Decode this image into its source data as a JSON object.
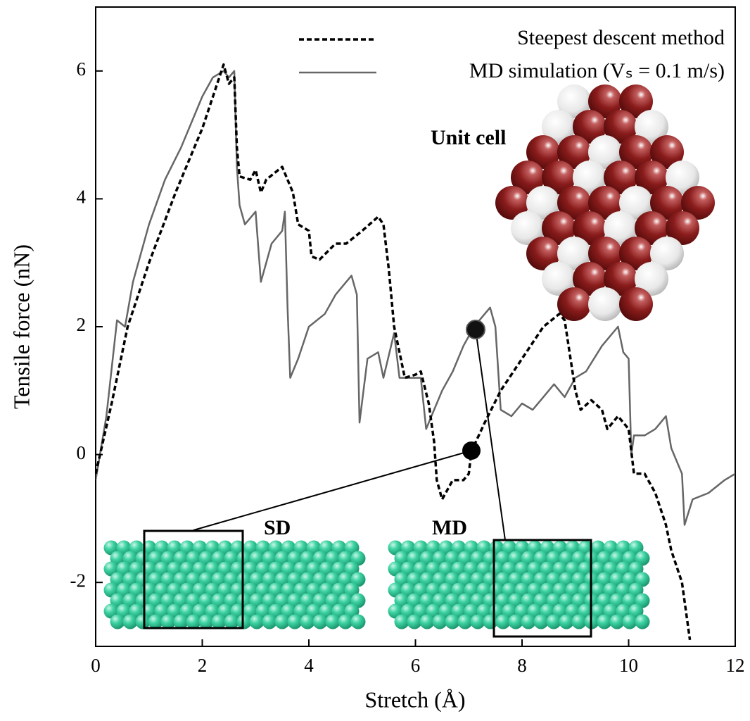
{
  "chart_data": {
    "type": "line",
    "xlabel": "Stretch (Å)",
    "ylabel": "Tensile force (nN)",
    "xlim": [
      0,
      12
    ],
    "ylim": [
      -3,
      7
    ],
    "xticks": [
      0,
      2,
      4,
      6,
      8,
      10,
      12
    ],
    "yticks": [
      -2,
      0,
      2,
      4,
      6
    ],
    "grid": false,
    "legend": "upper right",
    "annotations": [
      "Unit cell",
      "SD",
      "MD"
    ],
    "series": [
      {
        "name": "Steepest descent method",
        "color": "#000000",
        "style": "dashed",
        "x": [
          0,
          0.3,
          0.6,
          1.0,
          1.5,
          2.0,
          2.4,
          2.5,
          2.6,
          2.65,
          2.7,
          2.9,
          3.0,
          3.1,
          3.2,
          3.5,
          3.7,
          3.8,
          4.0,
          4.05,
          4.2,
          4.5,
          4.7,
          5.0,
          5.3,
          5.4,
          5.5,
          5.6,
          5.7,
          5.8,
          6.0,
          6.1,
          6.25,
          6.35,
          6.4,
          6.5,
          6.7,
          6.9,
          7.0,
          7.05,
          7.3,
          7.6,
          8.0,
          8.4,
          8.7,
          8.8,
          9.0,
          9.1,
          9.3,
          9.5,
          9.6,
          9.8,
          10.0,
          10.1,
          10.3,
          10.5,
          10.7,
          10.8,
          11.0,
          11.15
        ],
        "values": [
          -0.3,
          0.8,
          2.0,
          3.0,
          4.1,
          5.1,
          6.1,
          5.8,
          5.9,
          4.8,
          4.35,
          4.3,
          4.45,
          4.1,
          4.3,
          4.5,
          4.1,
          3.6,
          3.5,
          3.1,
          3.05,
          3.3,
          3.3,
          3.5,
          3.72,
          3.6,
          2.9,
          2.0,
          1.6,
          1.2,
          1.25,
          1.3,
          0.8,
          0.2,
          -0.4,
          -0.7,
          -0.4,
          -0.4,
          -0.3,
          0.05,
          0.5,
          1.0,
          1.5,
          2.0,
          2.2,
          2.1,
          1.0,
          0.7,
          0.85,
          0.7,
          0.4,
          0.6,
          0.4,
          -0.3,
          -0.3,
          -0.6,
          -1.1,
          -1.5,
          -2.0,
          -2.9
        ]
      },
      {
        "name": "MD simulation (Vₛ = 0.1 m/s)",
        "color": "#666666",
        "style": "solid",
        "x": [
          0,
          0.2,
          0.4,
          0.55,
          0.7,
          1.0,
          1.3,
          1.6,
          1.8,
          2.0,
          2.2,
          2.4,
          2.5,
          2.6,
          2.65,
          2.7,
          2.8,
          3.0,
          3.1,
          3.3,
          3.5,
          3.55,
          3.6,
          3.65,
          3.8,
          4.0,
          4.3,
          4.5,
          4.8,
          4.9,
          4.95,
          5.1,
          5.3,
          5.4,
          5.6,
          5.7,
          6.0,
          6.1,
          6.2,
          6.3,
          6.5,
          6.7,
          6.9,
          7.1,
          7.3,
          7.4,
          7.5,
          7.6,
          7.8,
          8.0,
          8.2,
          8.4,
          8.6,
          8.8,
          9.0,
          9.2,
          9.5,
          9.8,
          9.9,
          10.0,
          10.05,
          10.1,
          10.3,
          10.5,
          10.7,
          10.8,
          11.0,
          11.05,
          11.2,
          11.5,
          11.8,
          12.0
        ],
        "values": [
          -0.4,
          0.6,
          2.1,
          2.0,
          2.7,
          3.6,
          4.3,
          4.8,
          5.2,
          5.6,
          5.9,
          6.0,
          5.9,
          6.0,
          4.5,
          3.9,
          3.6,
          3.8,
          2.7,
          3.3,
          3.5,
          3.8,
          2.3,
          1.2,
          1.5,
          2.0,
          2.2,
          2.5,
          2.8,
          2.5,
          0.5,
          1.5,
          1.6,
          1.2,
          1.9,
          1.2,
          1.2,
          1.2,
          0.4,
          0.6,
          1.0,
          1.3,
          1.7,
          2.0,
          2.2,
          2.3,
          2.0,
          0.7,
          0.6,
          0.8,
          0.7,
          0.9,
          1.1,
          0.9,
          1.2,
          1.3,
          1.7,
          2.0,
          1.6,
          1.5,
          0.0,
          0.3,
          0.3,
          0.4,
          0.6,
          0.1,
          -0.3,
          -1.1,
          -0.7,
          -0.6,
          -0.4,
          -0.3
        ]
      }
    ]
  }
}
